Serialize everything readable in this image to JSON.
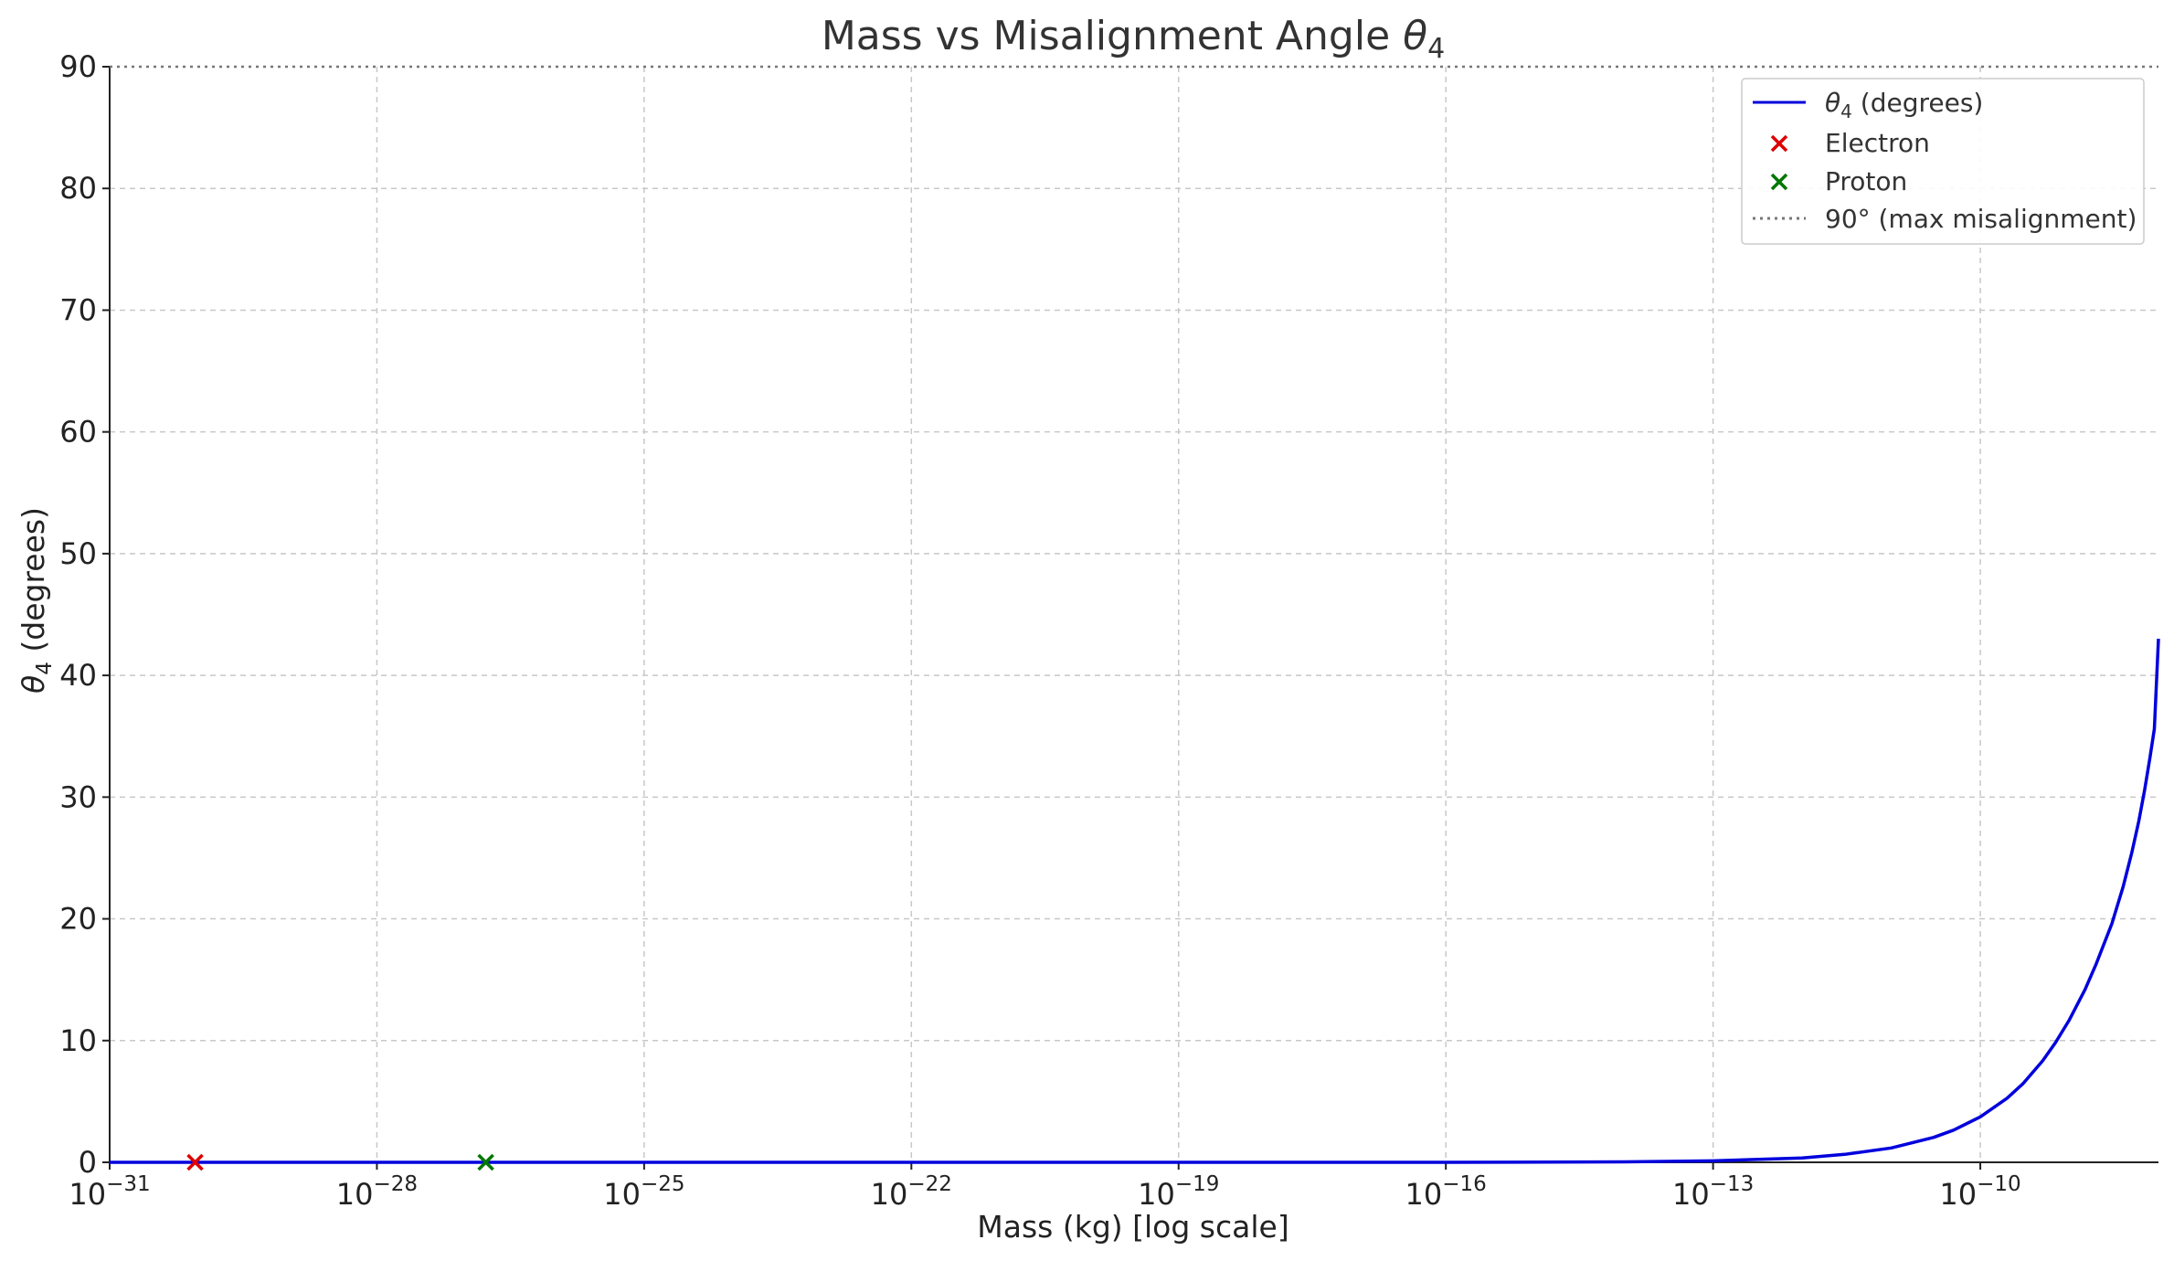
{
  "chart_data": {
    "type": "line",
    "title_prefix": "Mass vs Misalignment Angle ",
    "title_symbol": "θ",
    "title_subscript": "4",
    "xlabel": "Mass (kg) [log scale]",
    "ylabel_symbol": "θ",
    "ylabel_subscript": "4",
    "ylabel_suffix": " (degrees)",
    "x_scale": "log",
    "xlim": [
      1e-31,
      1e-08
    ],
    "ylim": [
      0,
      90
    ],
    "x_ticks": [
      {
        "base": "10",
        "exp": "−31",
        "value": 1e-31
      },
      {
        "base": "10",
        "exp": "−28",
        "value": 1e-28
      },
      {
        "base": "10",
        "exp": "−25",
        "value": 1e-25
      },
      {
        "base": "10",
        "exp": "−22",
        "value": 1e-22
      },
      {
        "base": "10",
        "exp": "−19",
        "value": 1e-19
      },
      {
        "base": "10",
        "exp": "−16",
        "value": 1e-16
      },
      {
        "base": "10",
        "exp": "−13",
        "value": 1e-13
      },
      {
        "base": "10",
        "exp": "−10",
        "value": 1e-10
      }
    ],
    "y_ticks": [
      0,
      10,
      20,
      30,
      40,
      50,
      60,
      70,
      80,
      90
    ],
    "grid": true,
    "legend_position": "top-right",
    "series": [
      {
        "name_symbol": "θ",
        "name_subscript": "4",
        "name_suffix": " (degrees)",
        "kind": "line",
        "color": "#0000dd",
        "x": [
          1e-31,
          1e-20,
          1e-16,
          1e-14,
          1e-13,
          1e-12,
          3e-12,
          1e-11,
          3e-11,
          5e-11,
          1e-10,
          2e-10,
          3e-10,
          5e-10,
          7e-10,
          1e-09,
          1.5e-09,
          2e-09,
          3e-09,
          4e-09,
          5e-09,
          6e-09,
          7e-09,
          8e-09,
          9e-09,
          1e-08
        ],
        "y": [
          0,
          0,
          0.0,
          0.04,
          0.12,
          0.36,
          0.65,
          1.18,
          2.05,
          2.64,
          3.73,
          5.27,
          6.45,
          8.33,
          9.84,
          11.7,
          14.2,
          16.3,
          19.6,
          22.6,
          25.4,
          28.0,
          30.6,
          33.2,
          35.6,
          43.0
        ]
      },
      {
        "name": "Electron",
        "kind": "marker",
        "color": "#dd0000",
        "x": [
          9.11e-31
        ],
        "y": [
          0
        ]
      },
      {
        "name": "Proton",
        "kind": "marker",
        "color": "#007700",
        "x": [
          1.67e-27
        ],
        "y": [
          0
        ]
      },
      {
        "name": "90° (max misalignment)",
        "kind": "hline",
        "color": "#777777",
        "y": 90
      }
    ]
  }
}
